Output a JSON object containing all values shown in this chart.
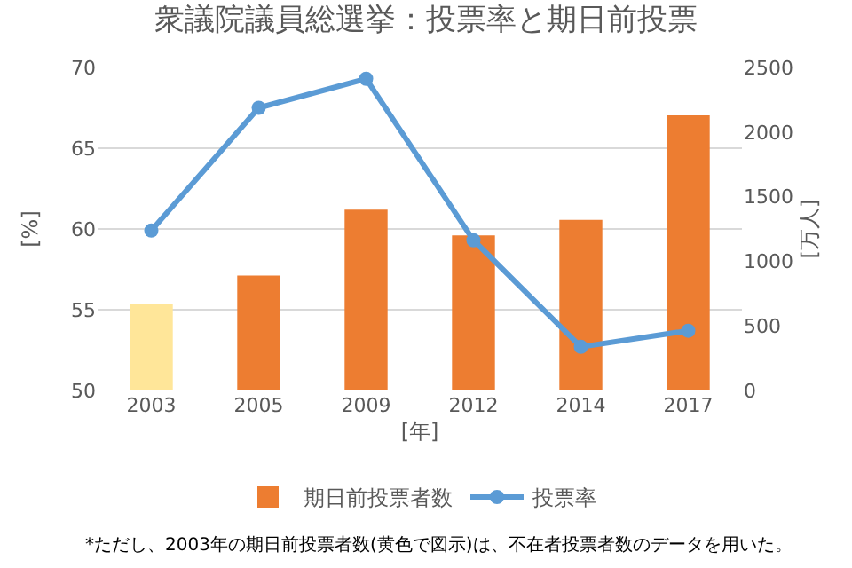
{
  "chart_data": {
    "type": "bar",
    "title": "衆議院議員総選挙：投票率と期日前投票",
    "xlabel": "[年]",
    "ylabel": "[%]",
    "y2label": "[万人]",
    "categories": [
      "2003",
      "2005",
      "2009",
      "2012",
      "2014",
      "2017"
    ],
    "series": [
      {
        "name": "期日前投票者数",
        "axis": "y2",
        "color": "#ed7d31",
        "colors": [
          "#ffe699",
          "#ed7d31",
          "#ed7d31",
          "#ed7d31",
          "#ed7d31",
          "#ed7d31"
        ],
        "values": [
          670,
          890,
          1400,
          1200,
          1320,
          2130
        ]
      },
      {
        "name": "投票率",
        "type": "line",
        "color": "#5b9bd5",
        "marker": "circle",
        "values": [
          59.9,
          67.5,
          69.3,
          59.3,
          52.7,
          53.7
        ]
      }
    ],
    "ylim": [
      50,
      70
    ],
    "yticks": [
      50,
      55,
      60,
      65,
      70
    ],
    "y2lim": [
      0,
      2500
    ],
    "y2ticks": [
      0,
      500,
      1000,
      1500,
      2000,
      2500
    ],
    "grid": "y",
    "legend": "bottom",
    "annotations": [
      "*ただし、2003年の期日前投票者数(黄色で図示)は、不在者投票者数のデータを用いた。"
    ]
  }
}
